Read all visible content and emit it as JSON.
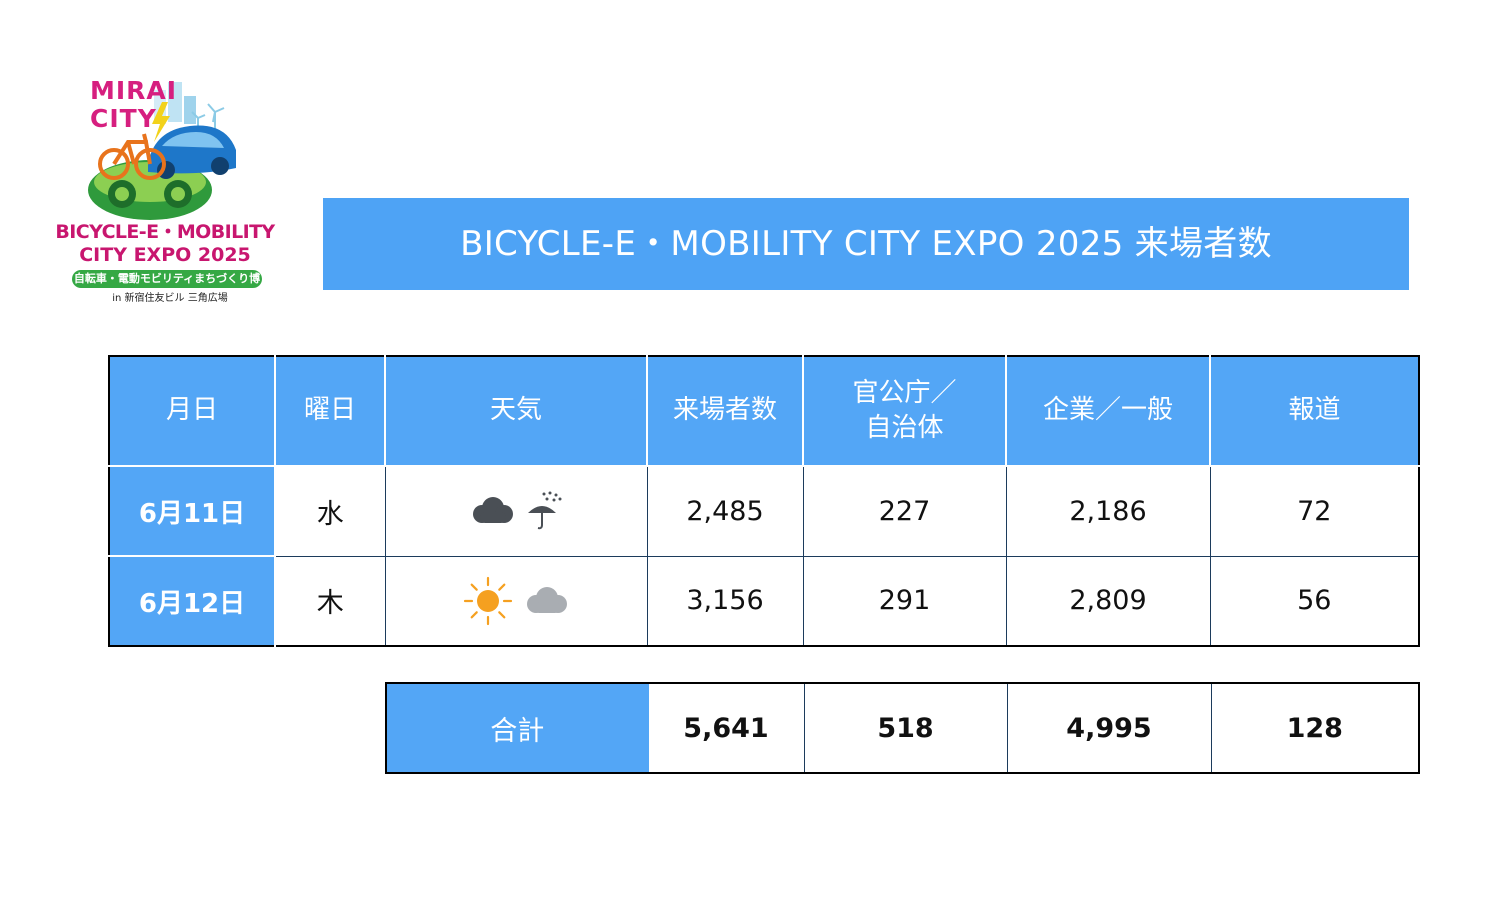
{
  "logo": {
    "mirai": "MIRAI",
    "city": "CITY",
    "line1": "BICYCLE-E・MOBILITY",
    "line2": "CITY EXPO 2025",
    "subtitle": "自転車・電動モビリティまちづくり博",
    "venue": "in 新宿住友ビル 三角広場"
  },
  "title": "BICYCLE-E・MOBILITY CITY EXPO 2025 来場者数",
  "table": {
    "headers": [
      "月日",
      "曜日",
      "天気",
      "来場者数",
      "官公庁／\n自治体",
      "企業／一般",
      "報道"
    ],
    "rows": [
      {
        "date": "6月11日",
        "day": "水",
        "weather": [
          "cloud-icon",
          "umbrella-rain-icon"
        ],
        "visitors": "2,485",
        "government": "227",
        "corporate": "2,186",
        "press": "72"
      },
      {
        "date": "6月12日",
        "day": "木",
        "weather": [
          "sun-icon",
          "cloud-icon"
        ],
        "visitors": "3,156",
        "government": "291",
        "corporate": "2,809",
        "press": "56"
      }
    ]
  },
  "totals": {
    "label": "合計",
    "visitors": "5,641",
    "government": "518",
    "corporate": "4,995",
    "press": "128"
  },
  "colors": {
    "accent_blue": "#53a6f6",
    "banner_blue": "#4ea3f5",
    "logo_magenta": "#c8166f",
    "logo_green": "#35a844",
    "dark_cloud": "#4a4f55",
    "light_cloud": "#a9adb2",
    "sun": "#f5a020"
  }
}
